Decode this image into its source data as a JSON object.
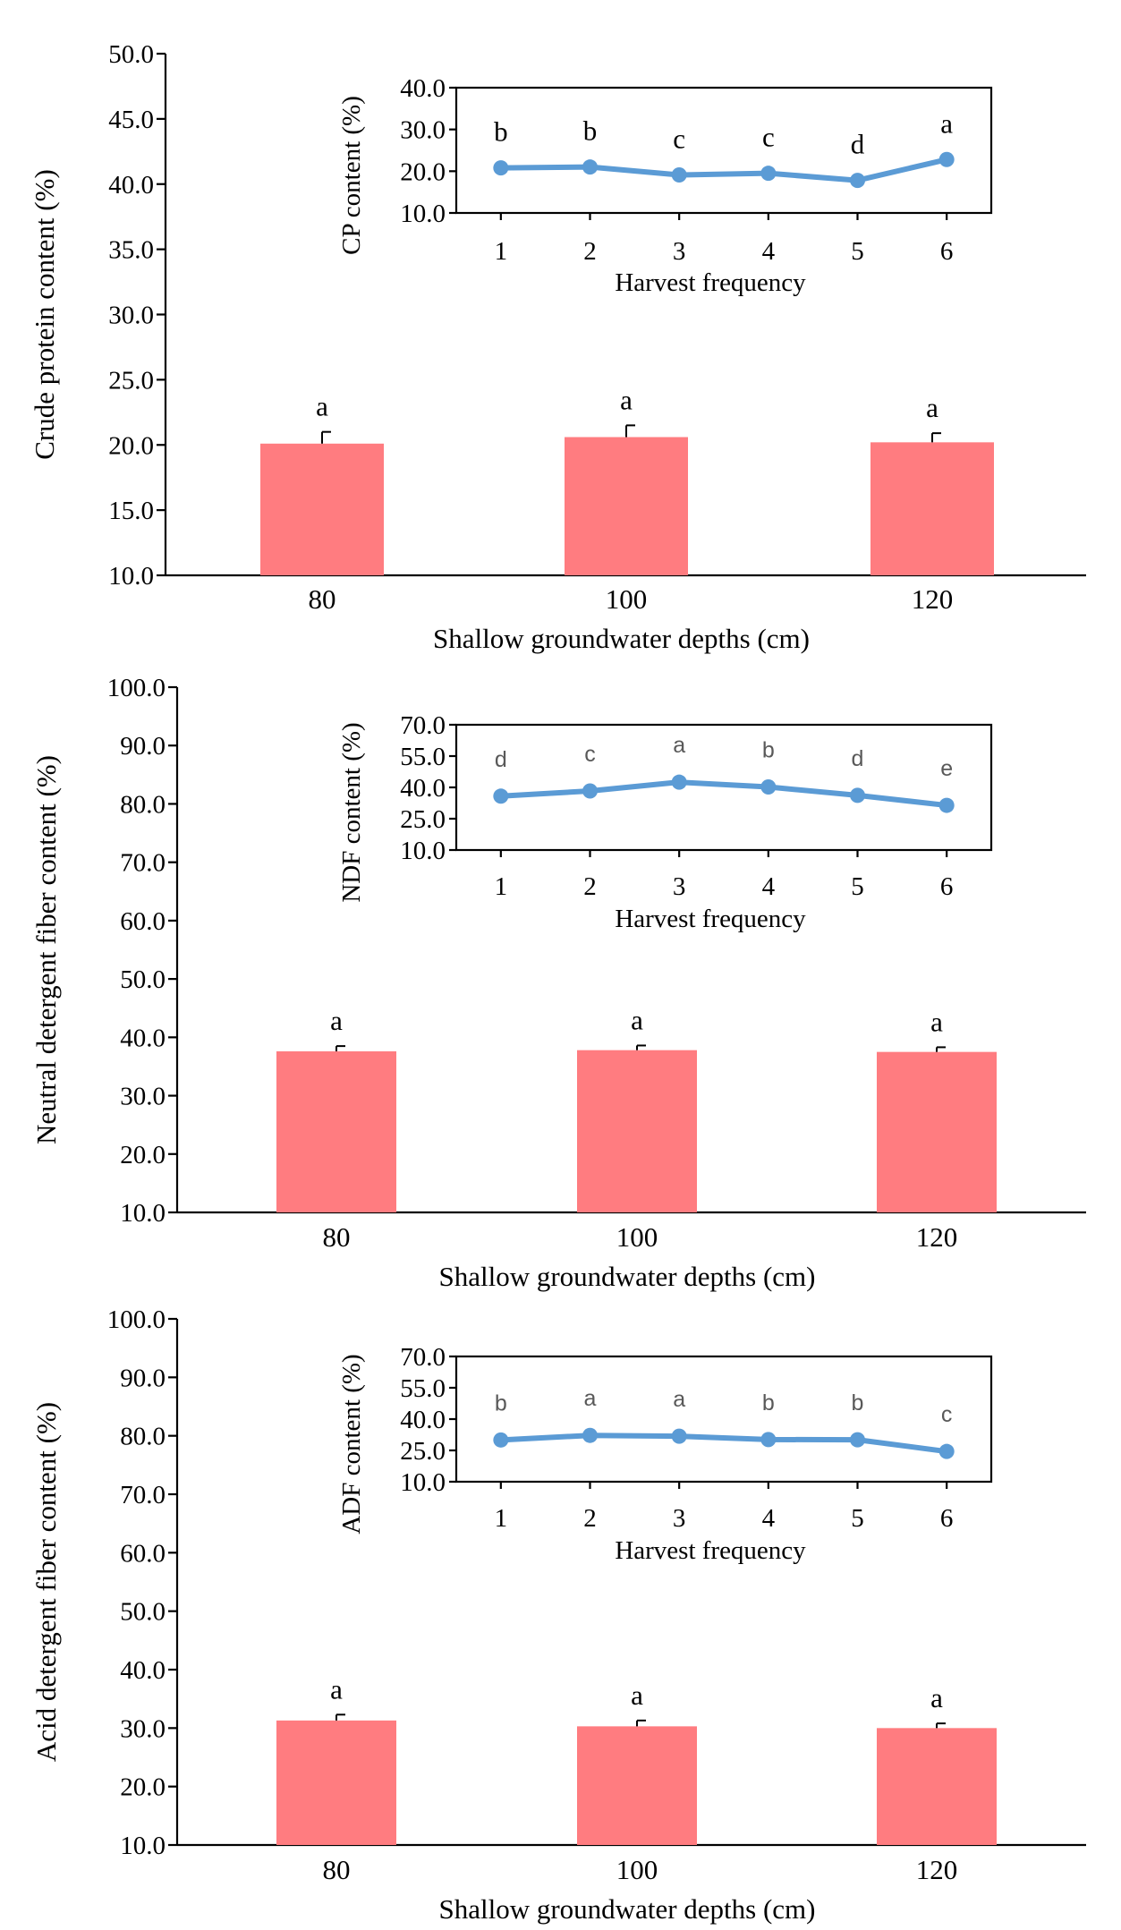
{
  "colors": {
    "bar": "#ff7c80",
    "line": "#5b9bd5",
    "axis": "#000000",
    "letter_serif": "#000000",
    "letter_sans": "#595959"
  },
  "chart_data": [
    {
      "type": "bar",
      "panel": "crude-protein",
      "ylabel": "Crude protein content (%)",
      "xlabel": "Shallow groundwater depths (cm)",
      "categories": [
        "80",
        "100",
        "120"
      ],
      "values": [
        20.1,
        20.6,
        20.2
      ],
      "errors": [
        0.9,
        0.9,
        0.7
      ],
      "letters": [
        "a",
        "a",
        "a"
      ],
      "ylim": [
        10.0,
        50.0
      ],
      "yticks": [
        "10.0",
        "15.0",
        "20.0",
        "25.0",
        "30.0",
        "35.0",
        "40.0",
        "45.0",
        "50.0"
      ],
      "inset": {
        "type": "line",
        "ylabel": "CP content (%)",
        "xlabel": "Harvest frequency",
        "x": [
          "1",
          "2",
          "3",
          "4",
          "5",
          "6"
        ],
        "values": [
          20.8,
          21.0,
          19.1,
          19.5,
          17.8,
          22.8
        ],
        "letters": [
          "b",
          "b",
          "c",
          "c",
          "d",
          "a"
        ],
        "letter_style": "serif",
        "ylim": [
          10.0,
          40.0
        ],
        "yticks": [
          "10.0",
          "20.0",
          "30.0",
          "40.0"
        ]
      }
    },
    {
      "type": "bar",
      "panel": "ndf",
      "ylabel": "Neutral detergent fiber content (%)",
      "xlabel": "Shallow groundwater depths (cm)",
      "categories": [
        "80",
        "100",
        "120"
      ],
      "values": [
        37.6,
        37.8,
        37.5
      ],
      "errors": [
        0.9,
        0.8,
        0.8
      ],
      "letters": [
        "a",
        "a",
        "a"
      ],
      "ylim": [
        10.0,
        100.0
      ],
      "yticks": [
        "10.0",
        "20.0",
        "30.0",
        "40.0",
        "50.0",
        "60.0",
        "70.0",
        "80.0",
        "90.0",
        "100.0"
      ],
      "inset": {
        "type": "line",
        "ylabel": "NDF content (%)",
        "xlabel": "Harvest frequency",
        "x": [
          "1",
          "2",
          "3",
          "4",
          "5",
          "6"
        ],
        "values": [
          35.8,
          38.3,
          42.5,
          40.2,
          36.2,
          31.4
        ],
        "letters": [
          "d",
          "c",
          "a",
          "b",
          "d",
          "e"
        ],
        "letter_style": "sans",
        "ylim": [
          10.0,
          70.0
        ],
        "yticks": [
          "10.0",
          "25.0",
          "40.0",
          "55.0",
          "70.0"
        ]
      }
    },
    {
      "type": "bar",
      "panel": "adf",
      "ylabel": "Acid detergent fiber content (%)",
      "xlabel": "Shallow groundwater depths (cm)",
      "categories": [
        "80",
        "100",
        "120"
      ],
      "values": [
        31.3,
        30.3,
        30.0
      ],
      "errors": [
        1.0,
        1.0,
        0.8
      ],
      "letters": [
        "a",
        "a",
        "a"
      ],
      "ylim": [
        10.0,
        100.0
      ],
      "yticks": [
        "10.0",
        "20.0",
        "30.0",
        "40.0",
        "50.0",
        "60.0",
        "70.0",
        "80.0",
        "90.0",
        "100.0"
      ],
      "inset": {
        "type": "line",
        "ylabel": "ADF content (%)",
        "xlabel": "Harvest frequency",
        "x": [
          "1",
          "2",
          "3",
          "4",
          "5",
          "6"
        ],
        "values": [
          30.0,
          32.2,
          31.8,
          30.2,
          30.1,
          24.5
        ],
        "letters": [
          "b",
          "a",
          "a",
          "b",
          "b",
          "c"
        ],
        "letter_style": "sans",
        "ylim": [
          10.0,
          70.0
        ],
        "yticks": [
          "10.0",
          "25.0",
          "40.0",
          "55.0",
          "70.0"
        ]
      }
    }
  ]
}
